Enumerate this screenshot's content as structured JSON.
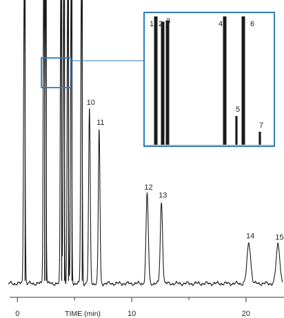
{
  "chart_data": {
    "type": "line",
    "xlabel": "TIME (min)",
    "xlim": [
      -0.8,
      23.2
    ],
    "xticks": [
      0,
      10,
      20
    ],
    "x_minor_ticks": [
      5,
      15
    ],
    "grid": false,
    "colors": {
      "trace": "#1a1a1a",
      "inset_border": "#2b7bbf",
      "background": "#ffffff"
    },
    "series": [
      {
        "peaks": [
          {
            "label": "",
            "time": 0.6,
            "height": 1.15,
            "width": 0.06
          },
          {
            "label": "",
            "time": 2.3,
            "height": 1.15,
            "width": 0.05
          },
          {
            "label": "",
            "time": 2.45,
            "height": 1.15,
            "width": 0.05
          },
          {
            "label": "",
            "time": 3.8,
            "height": 1.15,
            "width": 0.05
          },
          {
            "label": "",
            "time": 4.05,
            "height": 1.15,
            "width": 0.05
          },
          {
            "label": "",
            "time": 4.4,
            "height": 1.15,
            "width": 0.05
          },
          {
            "label": "",
            "time": 4.7,
            "height": 1.15,
            "width": 0.05
          },
          {
            "label": "",
            "time": 5.6,
            "height": 1.15,
            "width": 0.06
          },
          {
            "label": "10",
            "time": 6.3,
            "height": 0.645,
            "width": 0.07
          },
          {
            "label": "11",
            "time": 7.15,
            "height": 0.57,
            "width": 0.07
          },
          {
            "label": "12",
            "time": 11.35,
            "height": 0.33,
            "width": 0.1
          },
          {
            "label": "13",
            "time": 12.6,
            "height": 0.3,
            "width": 0.1
          },
          {
            "label": "14",
            "time": 20.25,
            "height": 0.15,
            "width": 0.16
          },
          {
            "label": "15",
            "time": 22.8,
            "height": 0.145,
            "width": 0.16
          }
        ]
      }
    ],
    "inset": {
      "source_window": {
        "time_range": [
          2.1,
          4.7
        ]
      },
      "peaks": [
        {
          "label": "1",
          "height": 0.98
        },
        {
          "label": "2",
          "height": 0.94
        },
        {
          "label": "3",
          "height": 0.95
        },
        {
          "label": "4",
          "height": 0.98
        },
        {
          "label": "5",
          "height": 0.22
        },
        {
          "label": "6",
          "height": 0.98
        },
        {
          "label": "7",
          "height": 0.1
        }
      ]
    }
  }
}
